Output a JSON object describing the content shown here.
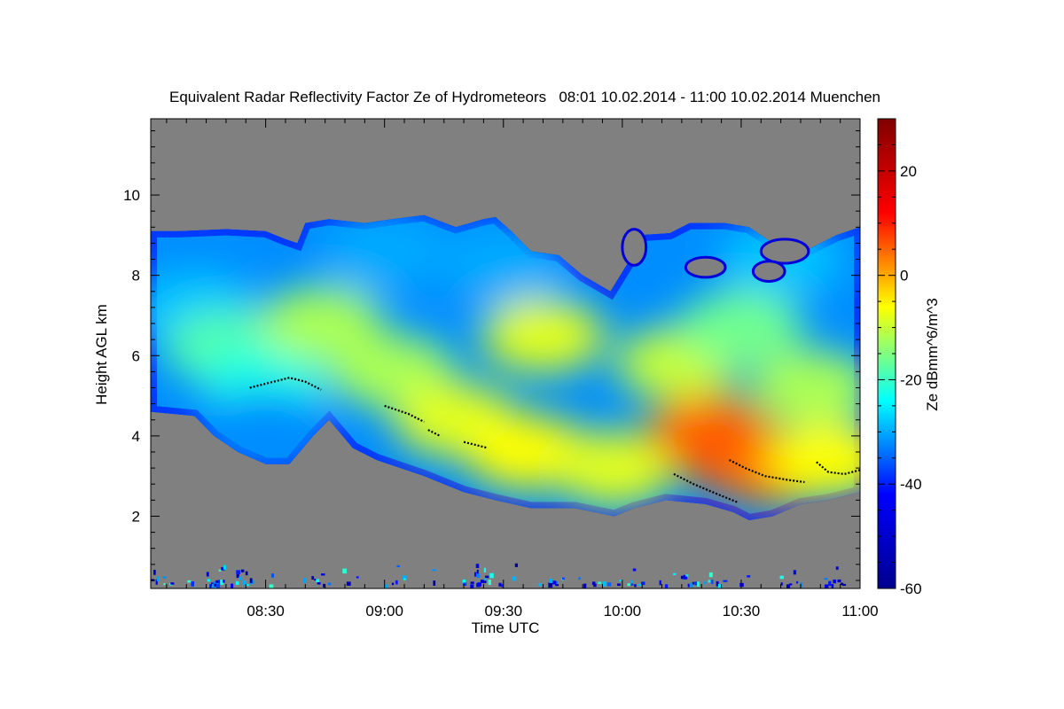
{
  "chart_data": {
    "type": "heatmap",
    "title": "Equivalent Radar Reflectivity Factor Ze of Hydrometeors   08:01 10.02.2014 - 11:00 10.02.2014 Muenchen",
    "xlabel": "Time UTC",
    "ylabel": "Height AGL km",
    "colorbar_label": "Ze dBmm^6/m^3",
    "x_ticks": [
      "08:30",
      "09:00",
      "09:30",
      "10:00",
      "10:30",
      "11:00"
    ],
    "x_tick_minutes": [
      30,
      60,
      90,
      120,
      150,
      180
    ],
    "xlim_minutes": [
      1,
      180
    ],
    "y_ticks": [
      2,
      4,
      6,
      8,
      10
    ],
    "ylim": [
      0.2,
      11.9
    ],
    "colorbar_ticks": [
      -60,
      -40,
      -20,
      0,
      20
    ],
    "zlim": [
      -60,
      30
    ],
    "colormap": [
      "#00008f",
      "#0000ff",
      "#00ffff",
      "#ffff00",
      "#ff0000",
      "#800000"
    ],
    "no_data_color": "#808080",
    "grid": false,
    "cloud": {
      "top_km": [
        [
          1,
          9.1
        ],
        [
          8,
          9.1
        ],
        [
          20,
          9.15
        ],
        [
          30,
          9.1
        ],
        [
          35,
          8.9
        ],
        [
          38,
          8.8
        ],
        [
          40,
          9.3
        ],
        [
          46,
          9.4
        ],
        [
          55,
          9.3
        ],
        [
          62,
          9.4
        ],
        [
          70,
          9.5
        ],
        [
          78,
          9.2
        ],
        [
          85,
          9.4
        ],
        [
          88,
          9.45
        ],
        [
          92,
          9.1
        ],
        [
          97,
          8.6
        ],
        [
          104,
          8.5
        ],
        [
          110,
          8.0
        ],
        [
          117,
          7.6
        ],
        [
          122,
          8.4
        ],
        [
          124,
          9.0
        ],
        [
          132,
          9.05
        ],
        [
          137,
          9.3
        ],
        [
          146,
          9.3
        ],
        [
          152,
          9.2
        ],
        [
          158,
          8.8
        ],
        [
          166,
          8.6
        ],
        [
          174,
          9.0
        ],
        [
          180,
          9.2
        ]
      ],
      "base_km": [
        [
          1,
          4.6
        ],
        [
          12,
          4.5
        ],
        [
          17,
          4.0
        ],
        [
          23,
          3.6
        ],
        [
          30,
          3.3
        ],
        [
          36,
          3.3
        ],
        [
          42,
          4.0
        ],
        [
          46,
          4.4
        ],
        [
          52,
          3.7
        ],
        [
          58,
          3.4
        ],
        [
          70,
          3.0
        ],
        [
          80,
          2.6
        ],
        [
          88,
          2.4
        ],
        [
          97,
          2.2
        ],
        [
          108,
          2.2
        ],
        [
          118,
          2.0
        ],
        [
          123,
          2.2
        ],
        [
          131,
          2.4
        ],
        [
          141,
          2.3
        ],
        [
          148,
          2.1
        ],
        [
          152,
          1.9
        ],
        [
          158,
          2.0
        ],
        [
          165,
          2.3
        ],
        [
          172,
          2.4
        ],
        [
          180,
          2.6
        ]
      ],
      "cells": [
        {
          "minute": 12,
          "km": 7.2,
          "dbz": -28
        },
        {
          "minute": 20,
          "km": 6.2,
          "dbz": -18
        },
        {
          "minute": 30,
          "km": 5.4,
          "dbz": -22
        },
        {
          "minute": 30,
          "km": 4.2,
          "dbz": -32
        },
        {
          "minute": 44,
          "km": 6.8,
          "dbz": -12
        },
        {
          "minute": 62,
          "km": 5.6,
          "dbz": -12
        },
        {
          "minute": 78,
          "km": 4.4,
          "dbz": -8
        },
        {
          "minute": 96,
          "km": 3.6,
          "dbz": -6
        },
        {
          "minute": 100,
          "km": 6.5,
          "dbz": -8
        },
        {
          "minute": 118,
          "km": 3.2,
          "dbz": -8
        },
        {
          "minute": 134,
          "km": 5.8,
          "dbz": -10
        },
        {
          "minute": 142,
          "km": 4.1,
          "dbz": 4
        },
        {
          "minute": 150,
          "km": 3.5,
          "dbz": 7
        },
        {
          "minute": 158,
          "km": 3.2,
          "dbz": 4
        },
        {
          "minute": 150,
          "km": 6.7,
          "dbz": -16
        },
        {
          "minute": 168,
          "km": 5.2,
          "dbz": -12
        },
        {
          "minute": 172,
          "km": 3.4,
          "dbz": -6
        },
        {
          "minute": 90,
          "km": 8.3,
          "dbz": -30
        },
        {
          "minute": 60,
          "km": 8.6,
          "dbz": -30
        },
        {
          "minute": 160,
          "km": 8.4,
          "dbz": -28
        }
      ],
      "gaps": [
        {
          "minute": 123,
          "km": 8.7,
          "w": 3,
          "h": 0.9
        },
        {
          "minute": 161,
          "km": 8.6,
          "w": 6,
          "h": 0.6
        },
        {
          "minute": 141,
          "km": 8.2,
          "w": 5,
          "h": 0.5
        },
        {
          "minute": 157,
          "km": 8.1,
          "w": 4,
          "h": 0.5
        }
      ]
    },
    "melting_layer_km": [
      [
        [
          26,
          5.2
        ],
        [
          32,
          5.35
        ],
        [
          36,
          5.45
        ],
        [
          40,
          5.35
        ],
        [
          44,
          5.15
        ]
      ],
      [
        [
          60,
          4.75
        ],
        [
          66,
          4.55
        ],
        [
          70,
          4.35
        ]
      ],
      [
        [
          71,
          4.15
        ],
        [
          74,
          4.0
        ]
      ],
      [
        [
          80,
          3.85
        ],
        [
          86,
          3.7
        ]
      ],
      [
        [
          133,
          3.05
        ],
        [
          138,
          2.8
        ],
        [
          144,
          2.55
        ],
        [
          149,
          2.35
        ]
      ],
      [
        [
          147,
          3.4
        ],
        [
          151,
          3.2
        ],
        [
          156,
          3.0
        ],
        [
          162,
          2.9
        ],
        [
          166,
          2.85
        ]
      ],
      [
        [
          169,
          3.35
        ],
        [
          172,
          3.1
        ],
        [
          176,
          3.05
        ],
        [
          180,
          3.15
        ]
      ]
    ],
    "clutter": {
      "height_km": [
        0.3,
        0.9
      ],
      "dbz": -40
    }
  }
}
